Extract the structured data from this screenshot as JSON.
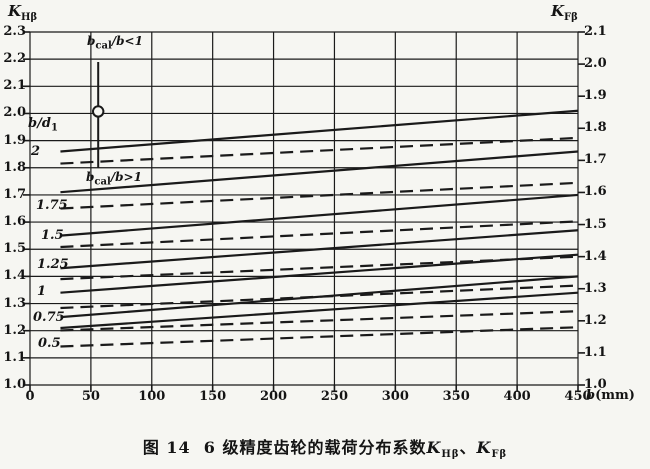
{
  "axis_titles": {
    "left": {
      "base": "K",
      "sub": "Hβ"
    },
    "right": {
      "base": "K",
      "sub": "Fβ"
    }
  },
  "axes": {
    "left_ticks": [
      "2.3",
      "2.2",
      "2.1",
      "2.0",
      "1.9",
      "1.8",
      "1.7",
      "1.6",
      "1.5",
      "1.4",
      "1.3",
      "1.2",
      "1.1",
      "1.0"
    ],
    "right_ticks": [
      "2.1",
      "2.0",
      "1.9",
      "1.8",
      "1.7",
      "1.6",
      "1.5",
      "1.4",
      "1.3",
      "1.2",
      "1.1",
      "1.0"
    ],
    "x_ticks": [
      "0",
      "50",
      "100",
      "150",
      "200",
      "250",
      "300",
      "350",
      "400",
      "450"
    ],
    "x_unit": {
      "var": "b",
      "rest": "(mm)"
    }
  },
  "ratio_header": {
    "base": "b/d",
    "sub": "1"
  },
  "curve_labels": [
    "2",
    "1.75",
    "1.5",
    "1.25",
    "1",
    "0.75",
    "0.5"
  ],
  "annotations": {
    "upper": {
      "base": "b",
      "sub": "cal",
      "rest": "/b<1"
    },
    "lower": {
      "base": "b",
      "sub": "cal",
      "rest": "/b>1"
    },
    "marker": {
      "b_mm": 56,
      "value_left_axis": 2.0
    }
  },
  "caption": {
    "fig_no": "图 14",
    "text": "6 级精度齿轮的载荷分布系数",
    "k1": {
      "base": "K",
      "sub": "Hβ"
    },
    "sep": "、",
    "k2": {
      "base": "K",
      "sub": "Fβ"
    }
  },
  "chart_data": {
    "type": "line",
    "title": "图14 6级精度齿轮的载荷分布系数 K_Hβ、K_Fβ",
    "xlabel": "b(mm)",
    "x_range": [
      0,
      450
    ],
    "grid": true,
    "line_color": "#1a1a1a",
    "left_axis": {
      "label": "K_Hβ",
      "range": [
        1.0,
        2.3
      ],
      "tick_step": 0.1,
      "applies_to": "solid curves"
    },
    "right_axis": {
      "label": "K_Fβ",
      "range": [
        1.0,
        2.1
      ],
      "tick_step": 0.1,
      "applies_to": "dashed curves"
    },
    "series": [
      {
        "name": "K_Hβ b/d1=2",
        "axis": "left",
        "line": "solid",
        "x": [
          25,
          450
        ],
        "values": [
          1.86,
          2.01
        ]
      },
      {
        "name": "K_Hβ b/d1=1.75",
        "axis": "left",
        "line": "solid",
        "x": [
          25,
          450
        ],
        "values": [
          1.71,
          1.86
        ]
      },
      {
        "name": "K_Hβ b/d1=1.5",
        "axis": "left",
        "line": "solid",
        "x": [
          25,
          450
        ],
        "values": [
          1.55,
          1.7
        ]
      },
      {
        "name": "K_Hβ b/d1=1.25",
        "axis": "left",
        "line": "solid",
        "x": [
          25,
          450
        ],
        "values": [
          1.43,
          1.57
        ]
      },
      {
        "name": "K_Hβ b/d1=1",
        "axis": "left",
        "line": "solid",
        "x": [
          25,
          450
        ],
        "values": [
          1.34,
          1.48
        ]
      },
      {
        "name": "K_Hβ b/d1=0.75",
        "axis": "left",
        "line": "solid",
        "x": [
          25,
          450
        ],
        "values": [
          1.25,
          1.4
        ]
      },
      {
        "name": "K_Hβ b/d1=0.5",
        "axis": "left",
        "line": "solid",
        "x": [
          25,
          450
        ],
        "values": [
          1.21,
          1.34
        ]
      },
      {
        "name": "K_Fβ b/d1=2",
        "axis": "right",
        "line": "dashed",
        "x": [
          25,
          450
        ],
        "values": [
          1.69,
          1.77
        ]
      },
      {
        "name": "K_Fβ b/d1=1.75",
        "axis": "right",
        "line": "dashed",
        "x": [
          25,
          450
        ],
        "values": [
          1.55,
          1.63
        ]
      },
      {
        "name": "K_Fβ b/d1=1.5",
        "axis": "right",
        "line": "dashed",
        "x": [
          25,
          450
        ],
        "values": [
          1.43,
          1.51
        ]
      },
      {
        "name": "K_Fβ b/d1=1.25",
        "axis": "right",
        "line": "dashed",
        "x": [
          25,
          450
        ],
        "values": [
          1.33,
          1.4
        ]
      },
      {
        "name": "K_Fβ b/d1=1",
        "axis": "right",
        "line": "dashed",
        "x": [
          25,
          450
        ],
        "values": [
          1.24,
          1.31
        ]
      },
      {
        "name": "K_Fβ b/d1=0.75",
        "axis": "right",
        "line": "dashed",
        "x": [
          25,
          450
        ],
        "values": [
          1.17,
          1.23
        ]
      },
      {
        "name": "K_Fβ b/d1=0.5",
        "axis": "right",
        "line": "dashed",
        "x": [
          25,
          450
        ],
        "values": [
          1.12,
          1.18
        ]
      }
    ]
  }
}
